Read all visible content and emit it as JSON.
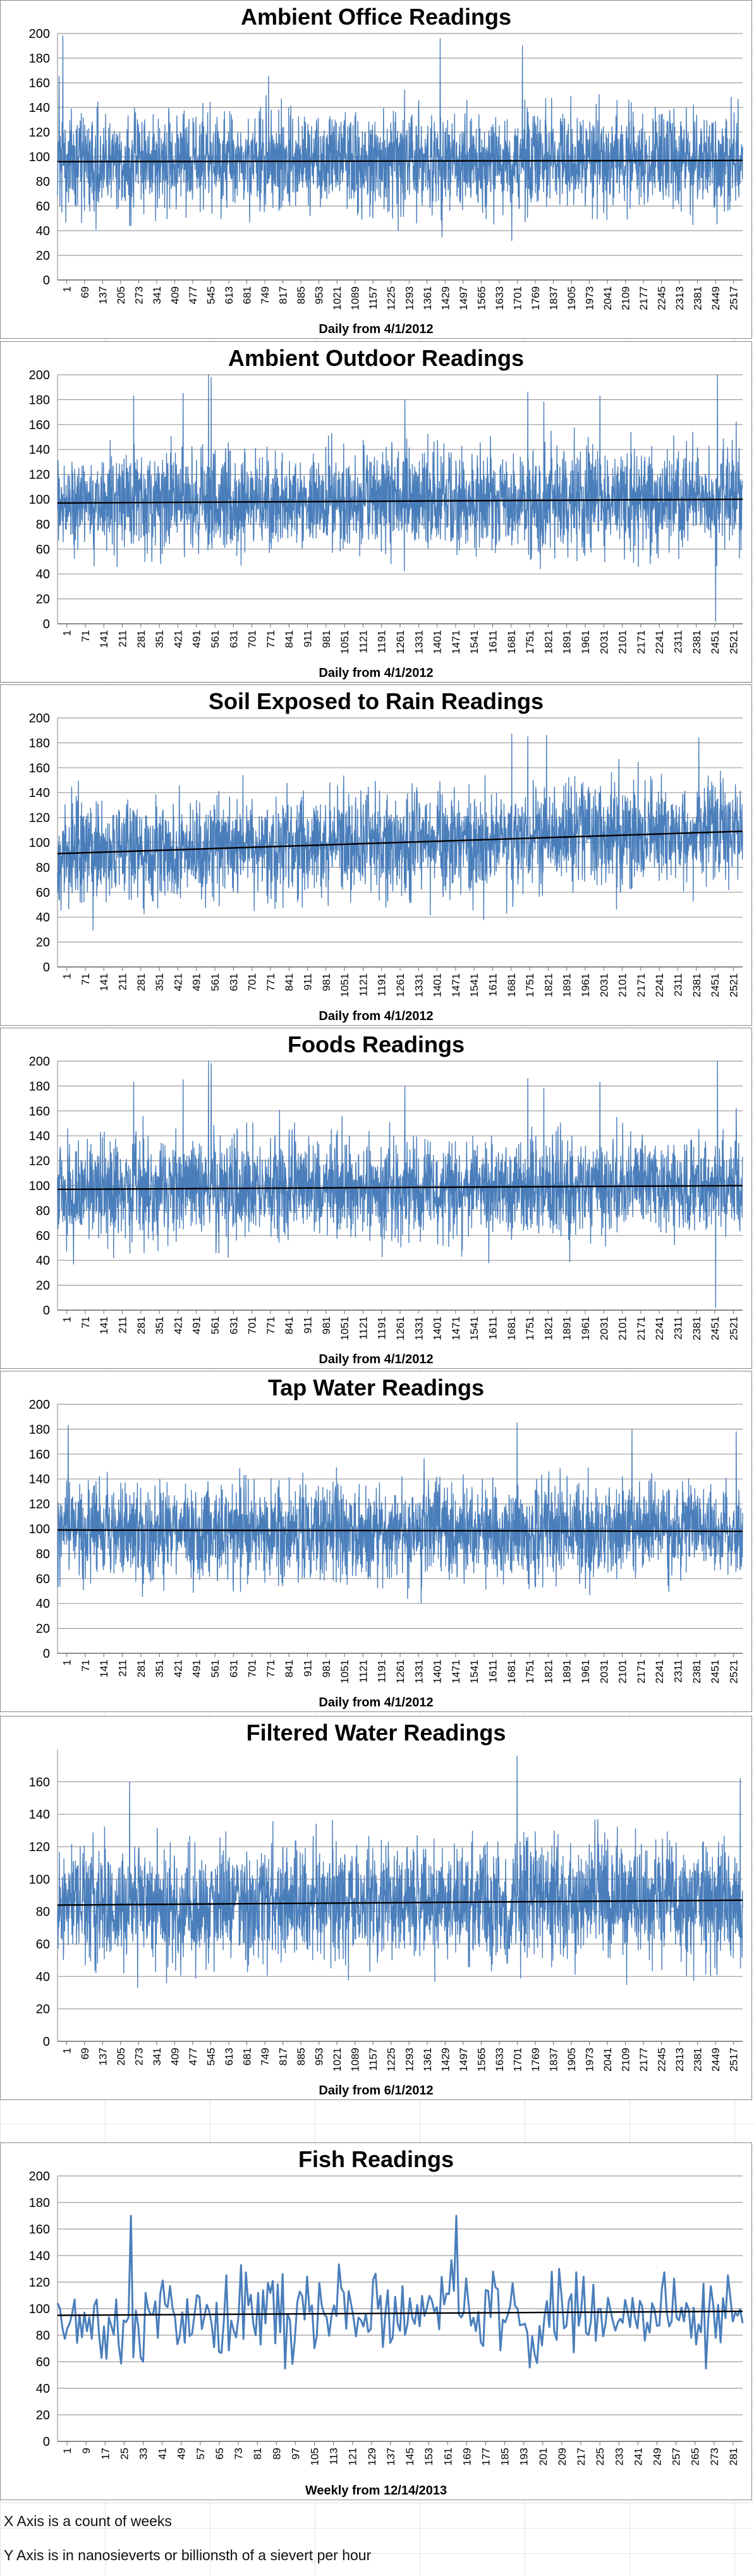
{
  "colors": {
    "series": "#4a7ebb",
    "trend": "#000000",
    "grid": "#9a9a9a",
    "axis_text": "#000000"
  },
  "footnotes": {
    "x_axis": "X Axis is a count of weeks",
    "y_axis": "Y Axis is in nanosieverts or billionsth of a sievert per hour"
  },
  "chart_data": [
    {
      "type": "line",
      "title": "Ambient Office Readings",
      "xlabel": "Daily from 4/1/2012",
      "ylabel": "",
      "ylim": [
        0,
        200
      ],
      "yticks": [
        0,
        20,
        40,
        60,
        80,
        100,
        120,
        140,
        160,
        180,
        200
      ],
      "xticks": [
        "1",
        "69",
        "137",
        "205",
        "273",
        "341",
        "409",
        "477",
        "545",
        "613",
        "681",
        "749",
        "817",
        "885",
        "953",
        "1021",
        "1089",
        "1157",
        "1225",
        "1293",
        "1361",
        "1429",
        "1497",
        "1565",
        "1633",
        "1701",
        "1769",
        "1837",
        "1905",
        "1973",
        "2041",
        "2109",
        "2177",
        "2245",
        "2313",
        "2381",
        "2449",
        "2517"
      ],
      "grid": true,
      "legend": "none",
      "n_points": 2565,
      "baseline": 97,
      "noise": 20,
      "spikes": [
        [
          6,
          165
        ],
        [
          20,
          198
        ],
        [
          790,
          165
        ],
        [
          1275,
          40
        ],
        [
          1432,
          196
        ],
        [
          1700,
          32
        ],
        [
          1740,
          190
        ],
        [
          2378,
          45
        ]
      ],
      "trend": [
        96,
        97
      ]
    },
    {
      "type": "line",
      "title": "Ambient Outdoor Readings",
      "xlabel": "Daily from 4/1/2012",
      "ylabel": "",
      "ylim": [
        0,
        200
      ],
      "yticks": [
        0,
        20,
        40,
        60,
        80,
        100,
        120,
        140,
        160,
        180,
        200
      ],
      "xticks": [
        "1",
        "71",
        "141",
        "211",
        "281",
        "351",
        "421",
        "491",
        "561",
        "631",
        "701",
        "771",
        "841",
        "911",
        "981",
        "1051",
        "1121",
        "1191",
        "1261",
        "1331",
        "1401",
        "1471",
        "1541",
        "1611",
        "1681",
        "1751",
        "1821",
        "1891",
        "1961",
        "2031",
        "2101",
        "2171",
        "2241",
        "2311",
        "2381",
        "2451",
        "2521"
      ],
      "grid": true,
      "legend": "none",
      "n_points": 2565,
      "baseline": 98,
      "noise": 20,
      "spikes": [
        [
          285,
          183
        ],
        [
          470,
          185
        ],
        [
          565,
          200
        ],
        [
          575,
          198
        ],
        [
          1300,
          180
        ],
        [
          1760,
          186
        ],
        [
          1820,
          178
        ],
        [
          2030,
          183
        ],
        [
          2463,
          2
        ],
        [
          2470,
          200
        ],
        [
          2540,
          162
        ]
      ],
      "trend": [
        97,
        100
      ]
    },
    {
      "type": "line",
      "title": "Soil Exposed to Rain Readings",
      "xlabel": "Daily from 4/1/2012",
      "ylabel": "",
      "ylim": [
        0,
        200
      ],
      "yticks": [
        0,
        20,
        40,
        60,
        80,
        100,
        120,
        140,
        160,
        180,
        200
      ],
      "xticks": [
        "1",
        "71",
        "141",
        "211",
        "281",
        "351",
        "421",
        "491",
        "561",
        "631",
        "701",
        "771",
        "841",
        "911",
        "981",
        "1051",
        "1121",
        "1191",
        "1261",
        "1331",
        "1401",
        "1471",
        "1541",
        "1611",
        "1681",
        "1751",
        "1821",
        "1891",
        "1961",
        "2031",
        "2101",
        "2171",
        "2241",
        "2311",
        "2381",
        "2451",
        "2521"
      ],
      "grid": true,
      "legend": "none",
      "n_points": 2565,
      "baseline": 100,
      "noise": 21,
      "spikes": [
        [
          1700,
          187
        ],
        [
          1760,
          185
        ],
        [
          1830,
          186
        ],
        [
          2400,
          184
        ],
        [
          1595,
          38
        ]
      ],
      "trend": [
        91,
        109
      ]
    },
    {
      "type": "line",
      "title": "Foods Readings",
      "xlabel": "Daily from 4/1/2012",
      "ylabel": "",
      "ylim": [
        0,
        200
      ],
      "yticks": [
        0,
        20,
        40,
        60,
        80,
        100,
        120,
        140,
        160,
        180,
        200
      ],
      "xticks": [
        "1",
        "71",
        "141",
        "211",
        "281",
        "351",
        "421",
        "491",
        "561",
        "631",
        "701",
        "771",
        "841",
        "911",
        "981",
        "1051",
        "1121",
        "1191",
        "1261",
        "1331",
        "1401",
        "1471",
        "1541",
        "1611",
        "1681",
        "1751",
        "1821",
        "1891",
        "1961",
        "2031",
        "2101",
        "2171",
        "2241",
        "2311",
        "2381",
        "2451",
        "2521"
      ],
      "grid": true,
      "legend": "none",
      "n_points": 2565,
      "baseline": 98,
      "noise": 20,
      "spikes": [
        [
          285,
          183
        ],
        [
          470,
          185
        ],
        [
          565,
          200
        ],
        [
          575,
          198
        ],
        [
          1300,
          180
        ],
        [
          1760,
          186
        ],
        [
          1820,
          178
        ],
        [
          2030,
          183
        ],
        [
          2463,
          2
        ],
        [
          2470,
          200
        ],
        [
          2540,
          162
        ]
      ],
      "trend": [
        97,
        100
      ]
    },
    {
      "type": "line",
      "title": "Tap Water Readings",
      "xlabel": "Daily from 4/1/2012",
      "ylabel": "",
      "ylim": [
        0,
        200
      ],
      "yticks": [
        0,
        20,
        40,
        60,
        80,
        100,
        120,
        140,
        160,
        180,
        200
      ],
      "xticks": [
        "1",
        "71",
        "141",
        "211",
        "281",
        "351",
        "421",
        "491",
        "561",
        "631",
        "701",
        "771",
        "841",
        "911",
        "981",
        "1051",
        "1121",
        "1191",
        "1261",
        "1331",
        "1401",
        "1471",
        "1541",
        "1611",
        "1681",
        "1751",
        "1821",
        "1891",
        "1961",
        "2031",
        "2101",
        "2171",
        "2241",
        "2311",
        "2381",
        "2451",
        "2521"
      ],
      "grid": true,
      "legend": "none",
      "n_points": 2565,
      "baseline": 98,
      "noise": 19,
      "spikes": [
        [
          40,
          183
        ],
        [
          1720,
          185
        ],
        [
          2150,
          180
        ],
        [
          2540,
          178
        ],
        [
          1310,
          44
        ]
      ],
      "trend": [
        99,
        98
      ]
    },
    {
      "type": "line",
      "title": "Filtered Water Readings",
      "xlabel": "Daily from 6/1/2012",
      "ylabel": "",
      "ylim": [
        0,
        180
      ],
      "yticks": [
        0,
        20,
        40,
        60,
        80,
        100,
        120,
        140,
        160
      ],
      "xticks": [
        "1",
        "69",
        "137",
        "205",
        "273",
        "341",
        "409",
        "477",
        "545",
        "613",
        "681",
        "749",
        "817",
        "885",
        "953",
        "1021",
        "1089",
        "1157",
        "1225",
        "1293",
        "1361",
        "1429",
        "1497",
        "1565",
        "1633",
        "1701",
        "1769",
        "1837",
        "1905",
        "1973",
        "2041",
        "2109",
        "2177",
        "2245",
        "2313",
        "2381",
        "2449",
        "2517"
      ],
      "grid": true,
      "legend": "none",
      "n_points": 2565,
      "baseline": 86,
      "noise": 18,
      "spikes": [
        [
          270,
          160
        ],
        [
          1720,
          176
        ],
        [
          2555,
          162
        ],
        [
          300,
          33
        ]
      ],
      "trend": [
        84,
        87
      ]
    },
    {
      "type": "line",
      "title": "Fish Readings",
      "xlabel": "Weekly from 12/14/2013",
      "ylabel": "",
      "ylim": [
        0,
        200
      ],
      "yticks": [
        0,
        20,
        40,
        60,
        80,
        100,
        120,
        140,
        160,
        180,
        200
      ],
      "xticks": [
        "1",
        "9",
        "17",
        "25",
        "33",
        "41",
        "49",
        "57",
        "65",
        "73",
        "81",
        "89",
        "97",
        "105",
        "113",
        "121",
        "129",
        "137",
        "145",
        "153",
        "161",
        "169",
        "177",
        "185",
        "193",
        "201",
        "209",
        "217",
        "225",
        "233",
        "241",
        "249",
        "257",
        "265",
        "273",
        "281"
      ],
      "grid": true,
      "legend": "none",
      "n_points": 281,
      "baseline": 97,
      "noise": 16,
      "spikes": [
        [
          30,
          170
        ],
        [
          35,
          60
        ],
        [
          93,
          55
        ],
        [
          163,
          170
        ],
        [
          265,
          55
        ]
      ],
      "trend": [
        95,
        98
      ]
    }
  ]
}
